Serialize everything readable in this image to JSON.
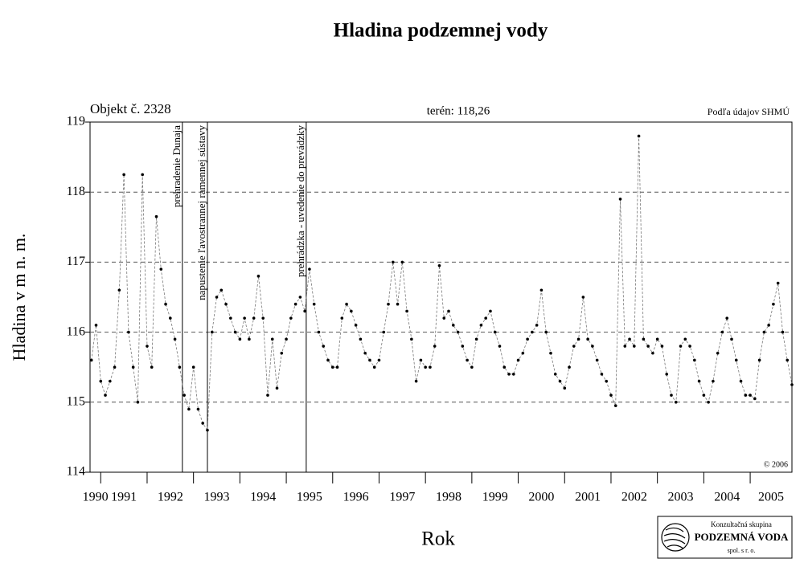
{
  "chart_data": {
    "type": "line",
    "title": "Hladina podzemnej vody",
    "object_label": "Objekt č. 2328",
    "terrain_label": "terén: 118,26",
    "source_label": "Podľa údajov SHMÚ",
    "copyright": "© 2006",
    "x_label": "Rok",
    "y_label": "Hladina v m n. m.",
    "xlim": [
      1990.77,
      2005.9
    ],
    "xticks": [
      1990,
      1991,
      1992,
      1993,
      1994,
      1995,
      1996,
      1997,
      1998,
      1999,
      2000,
      2001,
      2002,
      2003,
      2004,
      2005
    ],
    "ylim": [
      114,
      119
    ],
    "yticks": [
      114,
      115,
      116,
      117,
      118,
      119
    ],
    "grid": true,
    "annotations": [
      {
        "x": 1992.76,
        "text": "prehradenie Dunaja"
      },
      {
        "x": 1993.3,
        "text": "napustenie ľavostrannej ramennej sústavy"
      },
      {
        "x": 1995.43,
        "text": "prehrádzka - uvedenie do prevádzky"
      }
    ],
    "series": [
      {
        "color": "#000000",
        "x": [
          1990.8,
          1990.9,
          1991.0,
          1991.1,
          1991.2,
          1991.3,
          1991.4,
          1991.5,
          1991.6,
          1991.7,
          1991.8,
          1991.9,
          1992.0,
          1992.1,
          1992.2,
          1992.3,
          1992.4,
          1992.5,
          1992.6,
          1992.7,
          1992.8,
          1992.9,
          1993.0,
          1993.1,
          1993.2,
          1993.3,
          1993.4,
          1993.5,
          1993.6,
          1993.7,
          1993.8,
          1993.9,
          1994.0,
          1994.1,
          1994.2,
          1994.3,
          1994.4,
          1994.5,
          1994.6,
          1994.7,
          1994.8,
          1994.9,
          1995.0,
          1995.1,
          1995.2,
          1995.3,
          1995.4,
          1995.5,
          1995.6,
          1995.7,
          1995.8,
          1995.9,
          1996.0,
          1996.1,
          1996.2,
          1996.3,
          1996.4,
          1996.5,
          1996.6,
          1996.7,
          1996.8,
          1996.9,
          1997.0,
          1997.1,
          1997.2,
          1997.3,
          1997.4,
          1997.5,
          1997.6,
          1997.7,
          1997.8,
          1997.9,
          1998.0,
          1998.1,
          1998.2,
          1998.3,
          1998.4,
          1998.5,
          1998.6,
          1998.7,
          1998.8,
          1998.9,
          1999.0,
          1999.1,
          1999.2,
          1999.3,
          1999.4,
          1999.5,
          1999.6,
          1999.7,
          1999.8,
          1999.9,
          2000.0,
          2000.1,
          2000.2,
          2000.3,
          2000.4,
          2000.5,
          2000.6,
          2000.7,
          2000.8,
          2000.9,
          2001.0,
          2001.1,
          2001.2,
          2001.3,
          2001.4,
          2001.5,
          2001.6,
          2001.7,
          2001.8,
          2001.9,
          2002.0,
          2002.1,
          2002.2,
          2002.3,
          2002.4,
          2002.5,
          2002.6,
          2002.7,
          2002.8,
          2002.9,
          2003.0,
          2003.1,
          2003.2,
          2003.3,
          2003.4,
          2003.5,
          2003.6,
          2003.7,
          2003.8,
          2003.9,
          2004.0,
          2004.1,
          2004.2,
          2004.3,
          2004.4,
          2004.5,
          2004.6,
          2004.7,
          2004.8,
          2004.9,
          2005.0,
          2005.1,
          2005.2,
          2005.3,
          2005.4,
          2005.5,
          2005.6,
          2005.7,
          2005.8,
          2005.9
        ],
        "values": [
          115.6,
          116.1,
          115.3,
          115.1,
          115.3,
          115.5,
          116.6,
          118.25,
          116.0,
          115.5,
          115.0,
          118.25,
          115.8,
          115.5,
          117.65,
          116.9,
          116.4,
          116.2,
          115.9,
          115.5,
          115.1,
          114.9,
          115.5,
          114.9,
          114.7,
          114.6,
          116.0,
          116.5,
          116.6,
          116.4,
          116.2,
          116.0,
          115.9,
          116.2,
          115.9,
          116.2,
          116.8,
          116.2,
          115.1,
          115.9,
          115.2,
          115.7,
          115.9,
          116.2,
          116.4,
          116.5,
          116.3,
          116.9,
          116.4,
          116.0,
          115.8,
          115.6,
          115.5,
          115.5,
          116.2,
          116.4,
          116.3,
          116.1,
          115.9,
          115.7,
          115.6,
          115.5,
          115.6,
          116.0,
          116.4,
          117.0,
          116.4,
          117.0,
          116.3,
          115.9,
          115.3,
          115.6,
          115.5,
          115.5,
          115.8,
          116.95,
          116.2,
          116.3,
          116.1,
          116.0,
          115.8,
          115.6,
          115.5,
          115.9,
          116.1,
          116.2,
          116.3,
          116.0,
          115.8,
          115.5,
          115.4,
          115.4,
          115.6,
          115.7,
          115.9,
          116.0,
          116.1,
          116.6,
          116.0,
          115.7,
          115.4,
          115.3,
          115.2,
          115.5,
          115.8,
          115.9,
          116.5,
          115.9,
          115.8,
          115.6,
          115.4,
          115.3,
          115.1,
          114.95,
          117.9,
          115.8,
          115.9,
          115.8,
          118.8,
          115.9,
          115.8,
          115.7,
          115.9,
          115.8,
          115.4,
          115.1,
          115.0,
          115.8,
          115.9,
          115.8,
          115.6,
          115.3,
          115.1,
          115.0,
          115.3,
          115.7,
          116.0,
          116.2,
          115.9,
          115.6,
          115.3,
          115.1,
          115.1,
          115.05,
          115.6,
          116.0,
          116.1,
          116.4,
          116.7,
          116.0,
          115.6,
          115.25
        ]
      }
    ],
    "logo": {
      "line1": "Konzultačná skupina",
      "line2": "PODZEMNÁ VODA",
      "line3": "spol. s r. o."
    }
  }
}
